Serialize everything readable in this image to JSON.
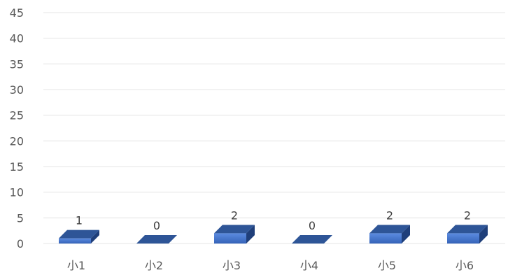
{
  "chart_data": {
    "type": "bar",
    "categories": [
      "小1",
      "小2",
      "小3",
      "小4",
      "小5",
      "小6"
    ],
    "series": [
      {
        "values": [
          1,
          0,
          2,
          0,
          2,
          2
        ]
      }
    ],
    "ylim": [
      0,
      45
    ],
    "yticks": [
      0,
      5,
      10,
      15,
      20,
      25,
      30,
      35,
      40,
      45
    ],
    "grid": true,
    "legend": "none",
    "bar_style": "3d",
    "colors": {
      "bar_front": "#4472C4",
      "bar_top": "#2E5597",
      "bar_side": "#1F3F7A",
      "gridline": "#EDEDED",
      "axis_text": "#595959",
      "data_label": "#404040"
    }
  }
}
